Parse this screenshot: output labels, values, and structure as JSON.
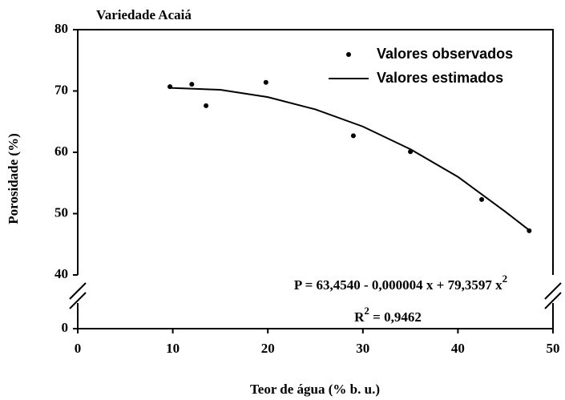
{
  "chart_data": {
    "type": "scatter-fit",
    "title": "Variedade Acaiá",
    "x_label": "Teor de água (% b. u.)",
    "y_label": "Porosidade (%)",
    "xlim": [
      0,
      50
    ],
    "xticks": [
      0,
      10,
      20,
      30,
      40,
      50
    ],
    "ylim": [
      0,
      80
    ],
    "yticks": [
      0,
      40,
      50,
      60,
      70,
      80
    ],
    "y_break": [
      0,
      40
    ],
    "series": [
      {
        "name": "Valores observados",
        "color": "#000000",
        "kind": "points",
        "x": [
          9.7,
          12,
          13.5,
          19.8,
          29,
          35,
          42.5,
          47.5
        ],
        "values": [
          70.7,
          71.1,
          67.6,
          71.4,
          62.7,
          60.1,
          52.3,
          47.2
        ]
      },
      {
        "name": "Valores estimados",
        "color": "#000000",
        "kind": "line",
        "x": [
          9.7,
          15,
          20,
          25,
          30,
          35,
          40,
          45,
          47.5
        ],
        "values": [
          70.5,
          70.2,
          69,
          67,
          64.2,
          60.5,
          56,
          50.3,
          47.3
        ]
      }
    ],
    "equation": [
      "P = 63,4540 - 0,000004 x + 79,3597 x",
      "2"
    ],
    "r2": [
      "R",
      "2",
      " = 0,9462"
    ],
    "legend": "upper right"
  }
}
